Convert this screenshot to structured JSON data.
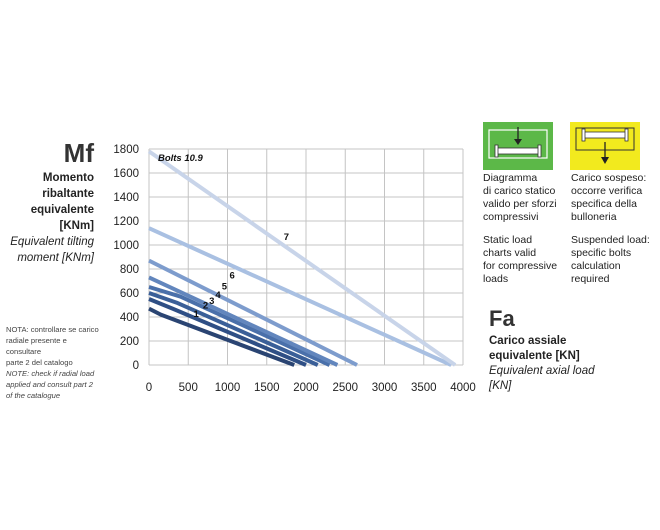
{
  "y_title": "Mf",
  "y_label": {
    "it_line1": "Momento",
    "it_line2": "ribaltante",
    "it_line3": "equivalente",
    "unit": "[KNm]",
    "en_line1": "Equivalent tilting",
    "en_line2": "moment [KNm]"
  },
  "note": {
    "it_line1": "NOTA: controllare se carico",
    "it_line2": "radiale presente e consultare",
    "it_line3": "parte 2 del catalogo",
    "en_line1": "NOTE: check if radial load",
    "en_line2": "applied and consult part 2",
    "en_line3": "of the catalogue"
  },
  "x_title": "Fa",
  "x_label": {
    "it_line1": "Carico assiale",
    "it_line2": "equivalente [KN]",
    "en_line1": "Equivalent axial load",
    "en_line2": "[KN]"
  },
  "legend": {
    "compressive": {
      "color": "#5cb848",
      "it_line1": "Diagramma",
      "it_line2": "di carico statico",
      "it_line3": "valido per sforzi",
      "it_line4": "compressivi",
      "en_line1": "Static load",
      "en_line2": "charts valid",
      "en_line3": "for compressive",
      "en_line4": "loads"
    },
    "suspended": {
      "color": "#f2ea1e",
      "it_line1": "Carico sospeso:",
      "it_line2": "occorre verifica",
      "it_line3": "specifica della",
      "it_line4": "bulloneria",
      "en_line1": "Suspended load:",
      "en_line2": "specific bolts",
      "en_line3": "calculation",
      "en_line4": "required"
    }
  },
  "chart_data": {
    "type": "line",
    "xlim": [
      0,
      4000
    ],
    "ylim": [
      0,
      1800
    ],
    "x_ticks": [
      "0",
      "500",
      "1000",
      "1500",
      "2000",
      "2500",
      "3000",
      "3500",
      "4000"
    ],
    "y_ticks": [
      "0",
      "200",
      "400",
      "600",
      "800",
      "1000",
      "1200",
      "1400",
      "1600",
      "1800"
    ],
    "grid": true,
    "annotation": "Bolts 10.9",
    "series": [
      {
        "name": "1",
        "color": "#2a4472",
        "x": [
          0,
          150,
          1850
        ],
        "y": [
          470,
          420,
          0
        ],
        "label_at": [
          600,
          400
        ]
      },
      {
        "name": "2",
        "color": "#2f4f85",
        "x": [
          0,
          300,
          2000
        ],
        "y": [
          550,
          470,
          0
        ],
        "label_at": [
          720,
          470
        ]
      },
      {
        "name": "3",
        "color": "#3a5f98",
        "x": [
          0,
          350,
          2150
        ],
        "y": [
          600,
          520,
          0
        ],
        "label_at": [
          800,
          510
        ]
      },
      {
        "name": "4",
        "color": "#4a70aa",
        "x": [
          0,
          400,
          2300
        ],
        "y": [
          650,
          570,
          0
        ],
        "label_at": [
          880,
          560
        ]
      },
      {
        "name": "5",
        "color": "#6286bd",
        "x": [
          0,
          2400
        ],
        "y": [
          730,
          0
        ],
        "label_at": [
          960,
          630
        ]
      },
      {
        "name": "6",
        "color": "#7d9ccd",
        "x": [
          0,
          2650
        ],
        "y": [
          870,
          0
        ],
        "label_at": [
          1060,
          720
        ]
      },
      {
        "name": "7",
        "color": "#a9c0e2",
        "x": [
          0,
          3850
        ],
        "y": [
          1140,
          0
        ],
        "label_at": [
          1750,
          1040
        ]
      },
      {
        "name": "Bolts 10.9",
        "color": "#c8d4e9",
        "x": [
          0,
          3900
        ],
        "y": [
          1780,
          0
        ],
        "label_at": [
          400,
          1700
        ]
      }
    ]
  }
}
